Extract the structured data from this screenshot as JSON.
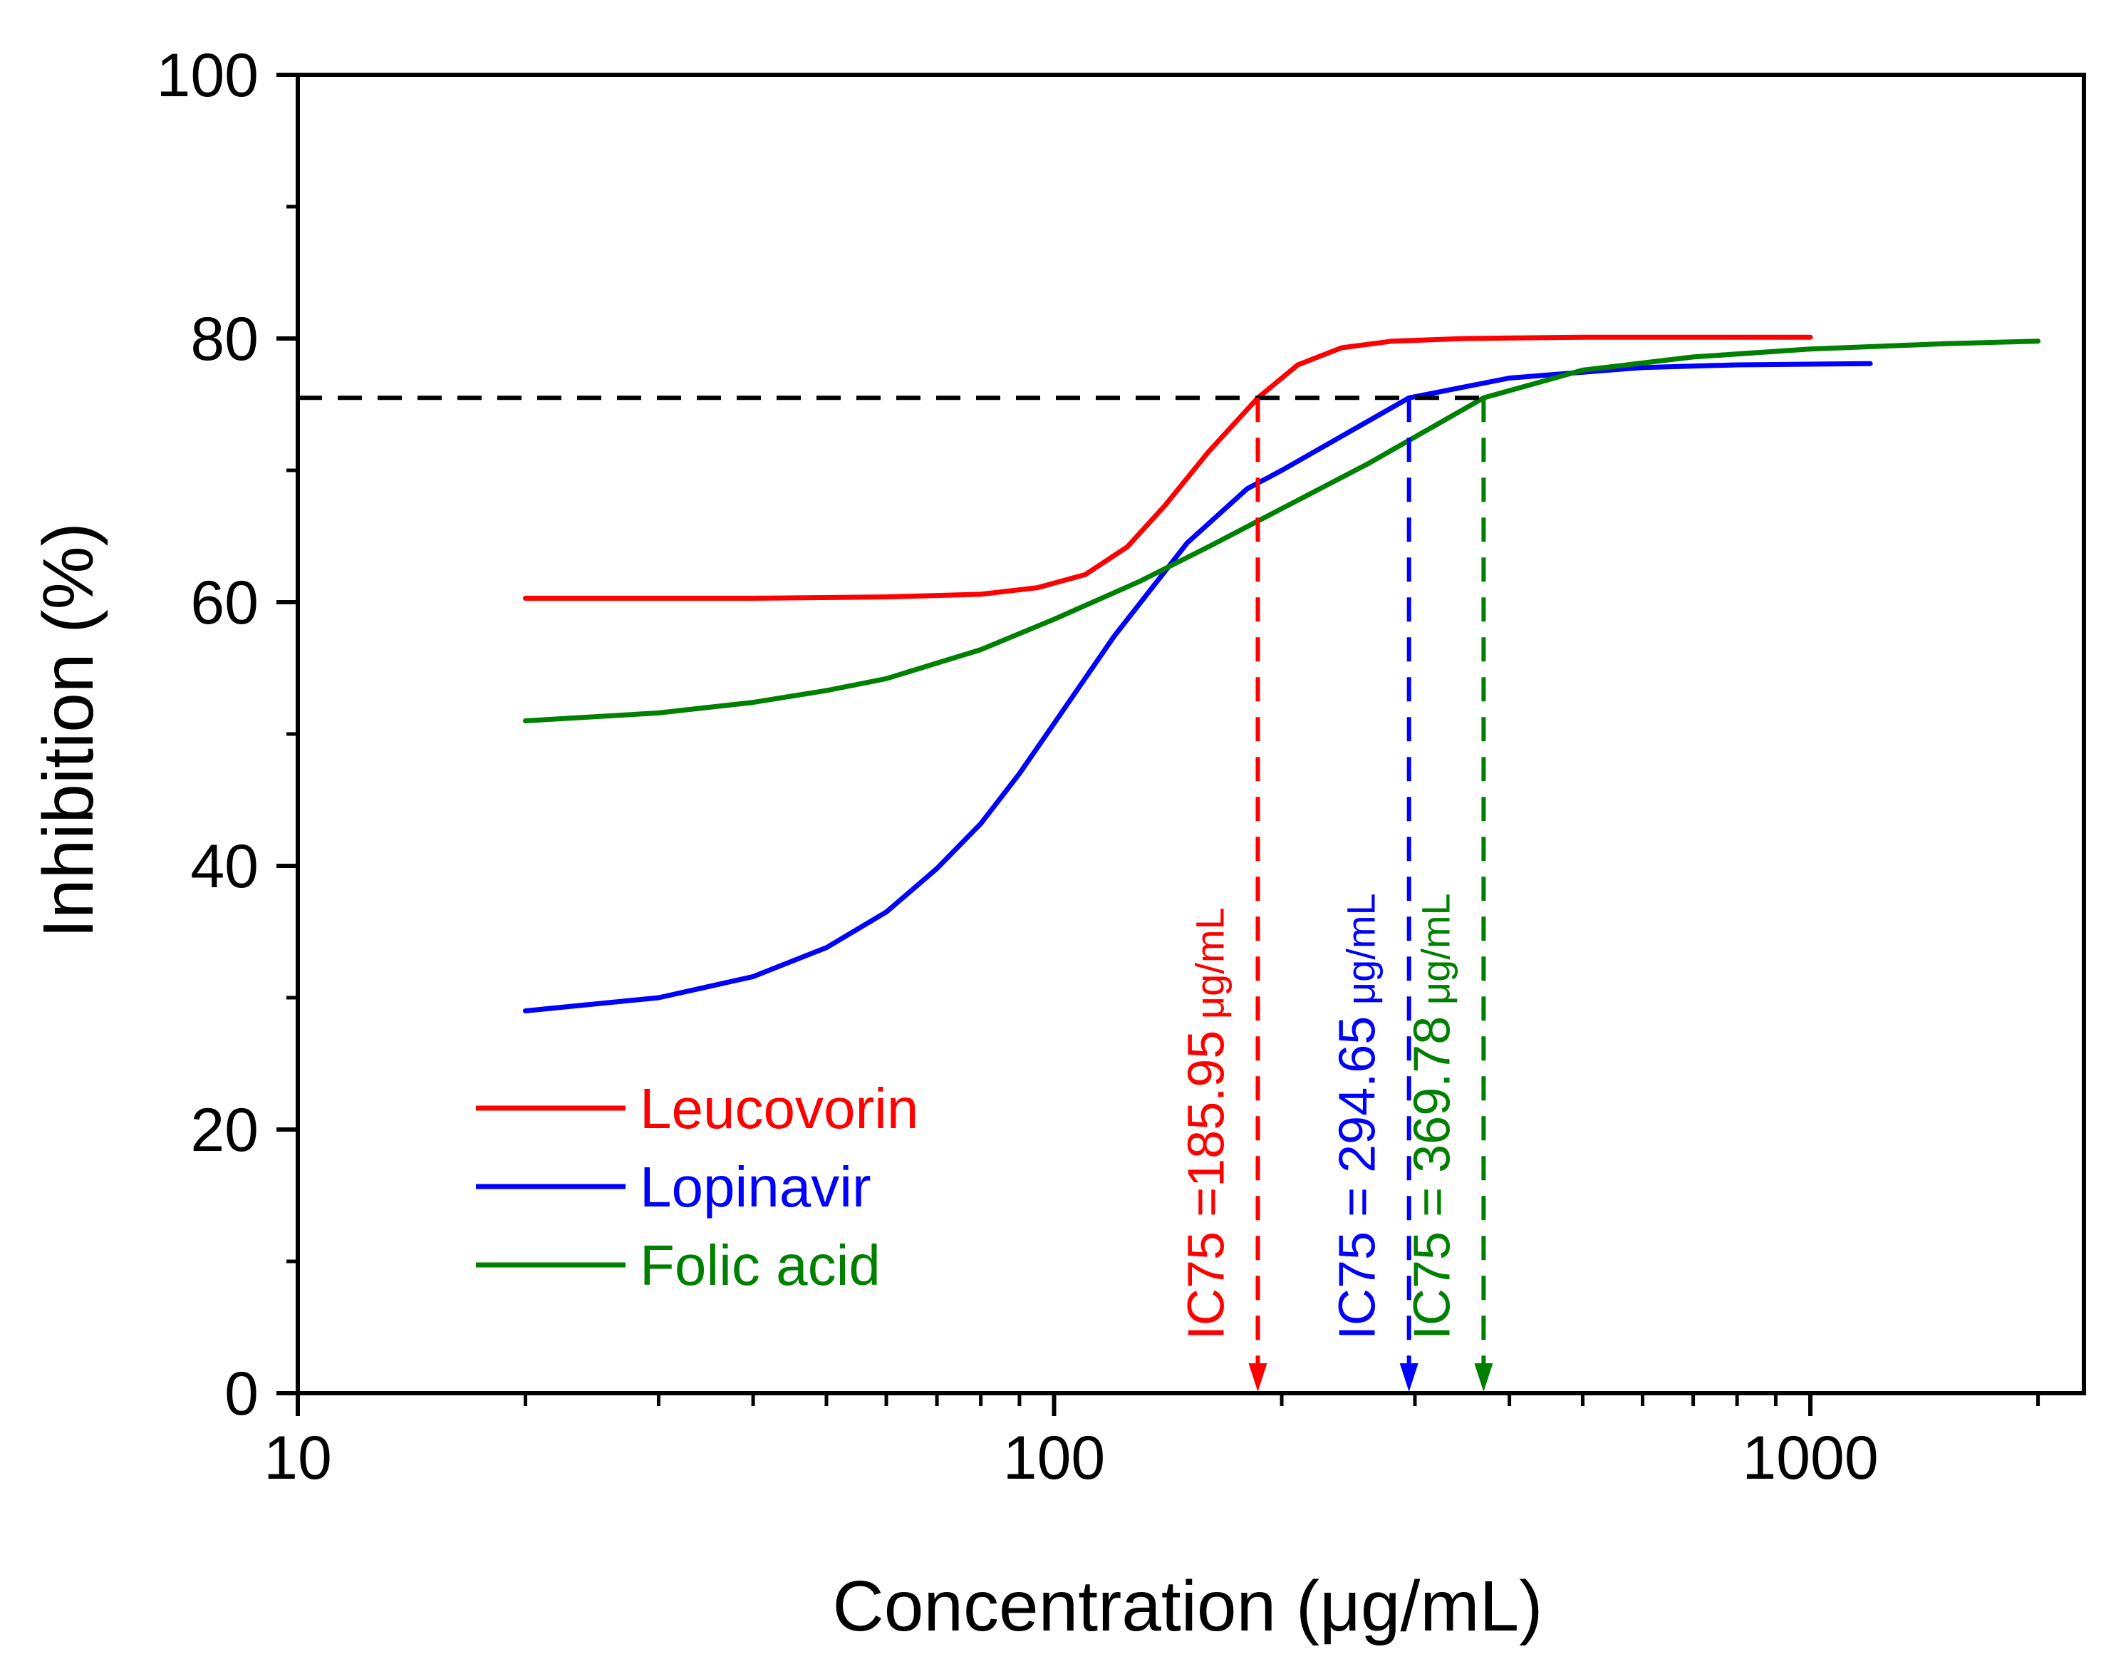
{
  "chart_data": {
    "type": "line",
    "xscale": "log",
    "xlabel": "Concentration (μg/mL)",
    "ylabel": "Inhibition (%)",
    "xlim": [
      10,
      2300
    ],
    "ylim": [
      0,
      100
    ],
    "xticks": [
      10,
      100,
      1000
    ],
    "yticks": [
      0,
      20,
      40,
      60,
      80,
      100
    ],
    "grid": false,
    "legend_position": "bottom-left",
    "threshold": 75.5,
    "series": [
      {
        "name": "Leucovorin",
        "color": "#ff0000",
        "x": [
          20,
          40,
          60,
          80,
          95,
          110,
          125,
          140,
          160,
          185.95,
          210,
          240,
          280,
          350,
          500,
          700,
          1000
        ],
        "y": [
          60.3,
          60.3,
          60.4,
          60.6,
          61.1,
          62.1,
          64.2,
          67.3,
          71.4,
          75.5,
          78.0,
          79.3,
          79.8,
          80.0,
          80.1,
          80.1,
          80.1
        ]
      },
      {
        "name": "Lopinavir",
        "color": "#0000ff",
        "x": [
          20,
          30,
          40,
          50,
          60,
          70,
          80,
          90,
          100,
          120,
          150,
          180,
          200,
          294.65,
          400,
          600,
          800,
          1200
        ],
        "y": [
          29.0,
          30.0,
          31.6,
          33.8,
          36.5,
          39.8,
          43.2,
          47.0,
          50.8,
          57.4,
          64.5,
          68.6,
          70.0,
          75.5,
          77.0,
          77.8,
          78.0,
          78.1
        ]
      },
      {
        "name": "Folic acid",
        "color": "#008000",
        "x": [
          20,
          30,
          40,
          50,
          60,
          80,
          100,
          130,
          160,
          200,
          260,
          369.78,
          500,
          700,
          1000,
          1500,
          2000
        ],
        "y": [
          51.0,
          51.6,
          52.4,
          53.3,
          54.2,
          56.4,
          58.7,
          61.6,
          64.2,
          67.1,
          70.5,
          75.5,
          77.6,
          78.6,
          79.2,
          79.6,
          79.8
        ]
      }
    ],
    "annotations": [
      {
        "series": "Leucovorin",
        "x": 185.95,
        "color": "#ff0000",
        "label": "IC75 =185.95",
        "unit": " μg/mL"
      },
      {
        "series": "Lopinavir",
        "x": 294.65,
        "color": "#0000ff",
        "label": "IC75 = 294.65",
        "unit": " μg/mL"
      },
      {
        "series": "Folic acid",
        "x": 369.78,
        "color": "#008000",
        "label": "IC75 = 369.78",
        "unit": " μg/mL"
      }
    ]
  }
}
